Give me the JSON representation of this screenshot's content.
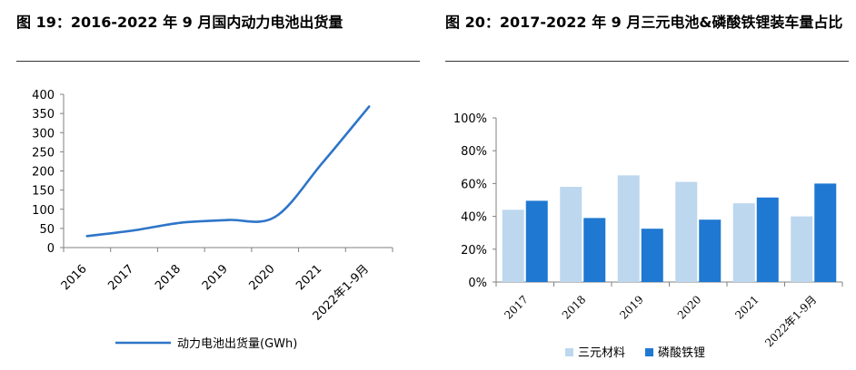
{
  "left": {
    "title": "图 19：2016-2022 年 9 月国内动力电池出货量",
    "chart_data": {
      "type": "line",
      "x": [
        "2016",
        "2017",
        "2018",
        "2019",
        "2020",
        "2021",
        "2022年1-9月"
      ],
      "series": [
        {
          "name": "动力电池出货量(GWh)",
          "values": [
            30,
            45,
            65,
            72,
            80,
            220,
            368
          ]
        }
      ],
      "ylim": [
        0,
        400
      ],
      "yticks": [
        "0",
        "50",
        "100",
        "150",
        "200",
        "250",
        "300",
        "350",
        "400"
      ],
      "grid": false,
      "legend": "bottom",
      "color": "#2E75C8"
    }
  },
  "right": {
    "title": "图 20：2017-2022 年 9 月三元电池&磷酸铁锂装车量占比",
    "chart_data": {
      "type": "bar",
      "categories": [
        "2017",
        "2018",
        "2019",
        "2020",
        "2021",
        "2022年1-9月"
      ],
      "series": [
        {
          "name": "三元材料",
          "values": [
            44,
            58,
            65,
            61,
            48,
            40
          ],
          "color": "#BDD7EE"
        },
        {
          "name": "磷酸铁锂",
          "values": [
            49.5,
            39,
            32.5,
            38,
            51.5,
            60
          ],
          "color": "#1F78D1"
        }
      ],
      "ylim": [
        0,
        100
      ],
      "yticks": [
        "0%",
        "20%",
        "40%",
        "60%",
        "80%",
        "100%"
      ],
      "grid": false,
      "legend": "bottom"
    }
  }
}
